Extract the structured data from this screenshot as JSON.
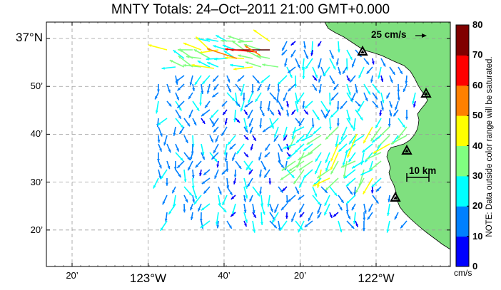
{
  "map": {
    "title": "MNTY Totals: 24–Oct–2011 21:00 GMT+0.000",
    "scale_arrow_label": "25 cm/s",
    "distance_scale_label": "10 km",
    "lat_ticks": [
      {
        "value": 37.0,
        "label": "37°N",
        "major": true
      },
      {
        "value": 36.8333,
        "label": "50’",
        "major": false
      },
      {
        "value": 36.6667,
        "label": "40’",
        "major": false
      },
      {
        "value": 36.5,
        "label": "30’",
        "major": false
      },
      {
        "value": 36.3333,
        "label": "20’",
        "major": false
      }
    ],
    "lon_ticks": [
      {
        "value": -123.3333,
        "label": "20’",
        "major": false
      },
      {
        "value": -123.0,
        "label": "123°W",
        "major": true
      },
      {
        "value": -122.6667,
        "label": "40’",
        "major": false
      },
      {
        "value": -122.3333,
        "label": "20’",
        "major": false
      },
      {
        "value": -122.0,
        "label": "122°W",
        "major": true
      }
    ],
    "stations": [
      "station-1",
      "station-2",
      "station-3",
      "station-4"
    ],
    "colors": {
      "land": "#7fe07f",
      "coast": "#000000",
      "grid": "#999999"
    }
  },
  "colorbar": {
    "ticks": [
      "0",
      "10",
      "20",
      "30",
      "40",
      "50",
      "60",
      "70",
      "80"
    ],
    "colors": [
      "#0000ff",
      "#0080ff",
      "#00ffff",
      "#80ff80",
      "#ffff00",
      "#ff8000",
      "#ff0000",
      "#800000"
    ],
    "unit": "cm/s",
    "note": "NOTE: Data outside color range will be saturated."
  }
}
